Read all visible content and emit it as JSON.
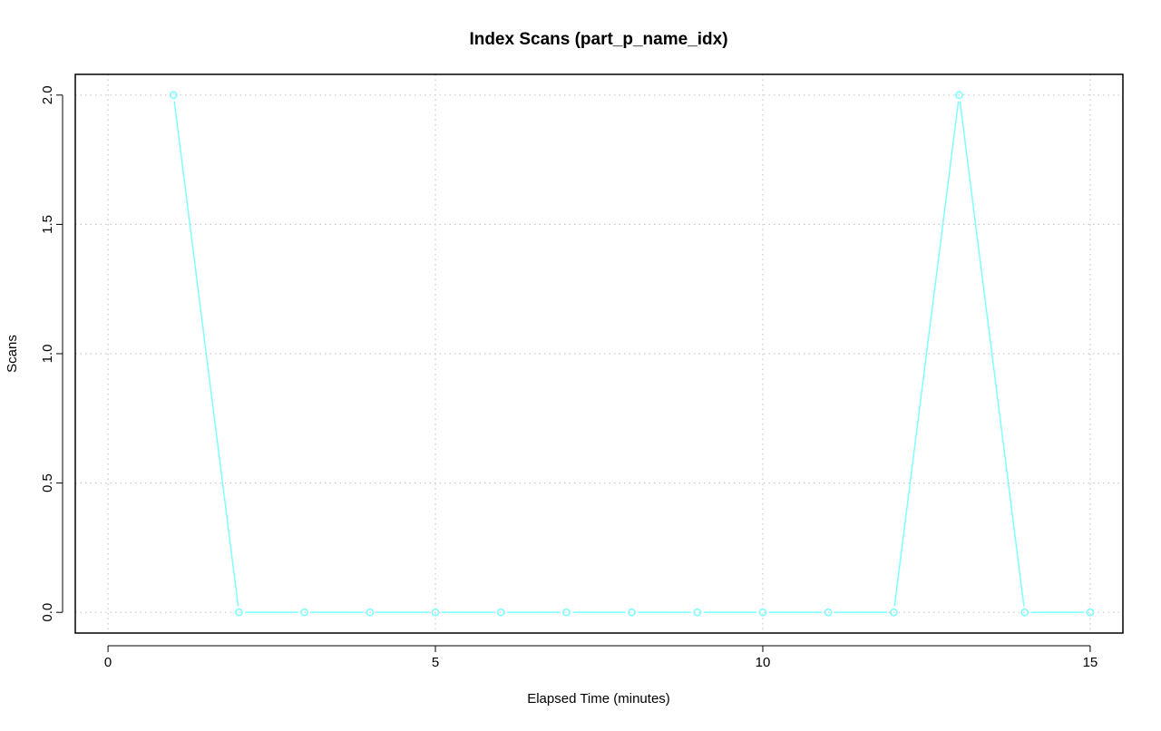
{
  "chart_data": {
    "type": "line",
    "title": "Index Scans (part_p_name_idx)",
    "xlabel": "Elapsed Time (minutes)",
    "ylabel": "Scans",
    "xlim": [
      -0.5,
      15.5
    ],
    "ylim": [
      -0.08,
      2.08
    ],
    "xticks": [
      0,
      5,
      10,
      15
    ],
    "xtick_labels": [
      "0",
      "5",
      "10",
      "15"
    ],
    "yticks": [
      0.0,
      0.5,
      1.0,
      1.5,
      2.0
    ],
    "ytick_labels": [
      "0.0",
      "0.5",
      "1.0",
      "1.5",
      "2.0"
    ],
    "grid": true,
    "x": [
      1,
      2,
      3,
      4,
      5,
      6,
      7,
      8,
      9,
      10,
      11,
      12,
      13,
      14,
      15
    ],
    "series": [
      {
        "values": [
          2,
          0,
          0,
          0,
          0,
          0,
          0,
          0,
          0,
          0,
          0,
          0,
          2,
          0,
          0
        ],
        "color": "#7fffff"
      }
    ]
  }
}
